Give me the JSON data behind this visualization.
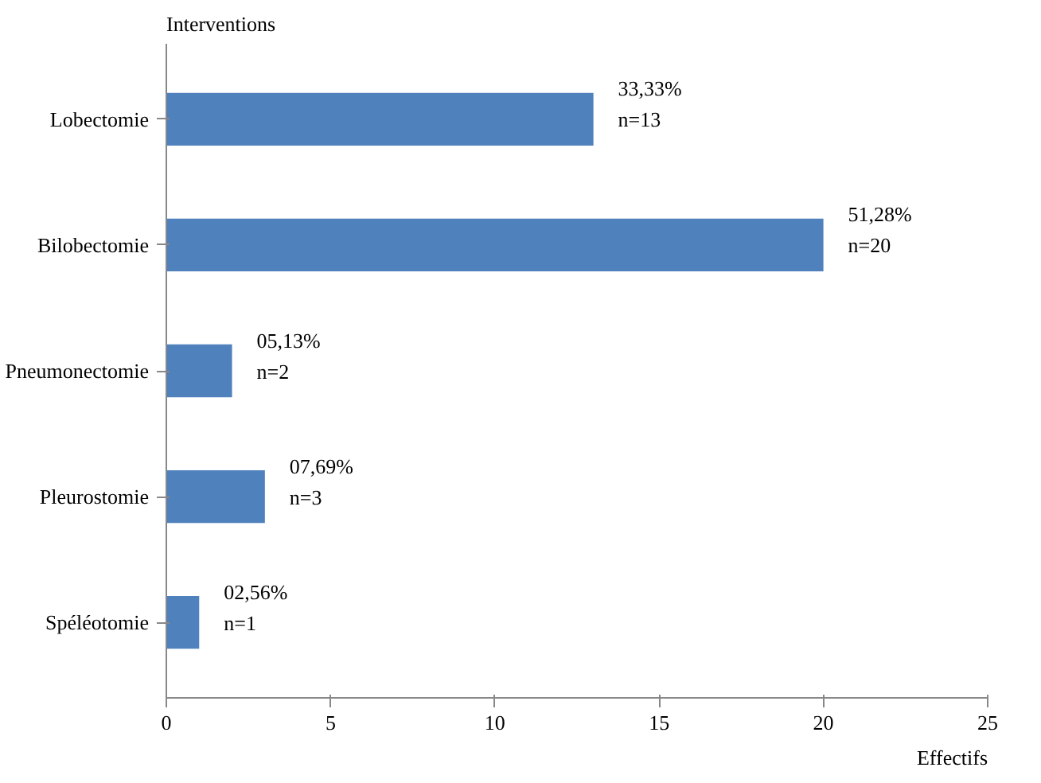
{
  "chart_data": {
    "type": "bar",
    "orientation": "horizontal",
    "xlabel": "Effectifs",
    "ylabel": "Interventions",
    "categories": [
      "Lobectomie",
      "Bilobectomie",
      "Pneumonectomie",
      "Pleurostomie",
      "Spéléotomie"
    ],
    "values": [
      13,
      20,
      2,
      3,
      1
    ],
    "value_labels": [
      "33,33%\nn=13",
      "51,28%\nn=20",
      "05,13%\nn=2",
      "07,69%\nn=3",
      "02,56%\nn=1"
    ],
    "color": "#4f81bd",
    "xlim": [
      0,
      25
    ],
    "xticks": [
      0,
      5,
      10,
      15,
      20,
      25
    ],
    "grid": false
  }
}
